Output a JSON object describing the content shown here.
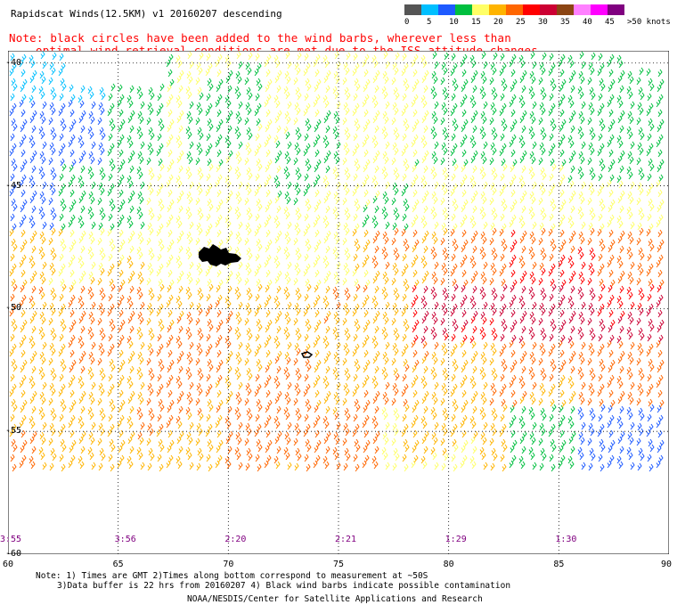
{
  "header": {
    "title": "Rapidscat Winds(12.5KM) v1 20160207 descending",
    "note_line1": "Note: black circles have been added to the wind barbs, wherever less than",
    "note_line2": "optimal wind retrieval conditions are met due to the ISS attitude changes."
  },
  "legend": {
    "colors": [
      "#555555",
      "#00bfff",
      "#1e5aff",
      "#00bf3f",
      "#ffff66",
      "#ffb400",
      "#ff6600",
      "#ff0000",
      "#cc0033",
      "#8b4513",
      "#ff80ff",
      "#ff00ff",
      "#800080"
    ],
    "labels": [
      "0",
      "5",
      "10",
      "15",
      "20",
      "25",
      "30",
      "35",
      "40",
      "45",
      ">50 knots"
    ]
  },
  "map": {
    "lat_labels": [
      "-40",
      "-45",
      "-50",
      "-55",
      "-60"
    ],
    "lat_values": [
      -40,
      -45,
      -50,
      -55,
      -60
    ],
    "lon_labels": [
      "60",
      "65",
      "70",
      "75",
      "80",
      "85",
      "90"
    ],
    "lon_values": [
      60,
      65,
      70,
      75,
      80,
      85,
      90
    ],
    "lon_range": [
      60,
      90
    ],
    "lat_range": [
      -60,
      -39.5
    ],
    "time_labels": [
      "3:55",
      "3:56",
      "2:20",
      "2:21",
      "1:29",
      "1:30"
    ]
  },
  "footer": {
    "line1": "Note: 1) Times are GMT 2)Times along bottom correspond to measurement at ~50S",
    "line2": "3)Data buffer is 22 hrs from 20160207 4) Black wind barbs indicate possible contamination",
    "line3": "NOAA/NESDIS/Center for Satellite Applications and Research"
  }
}
